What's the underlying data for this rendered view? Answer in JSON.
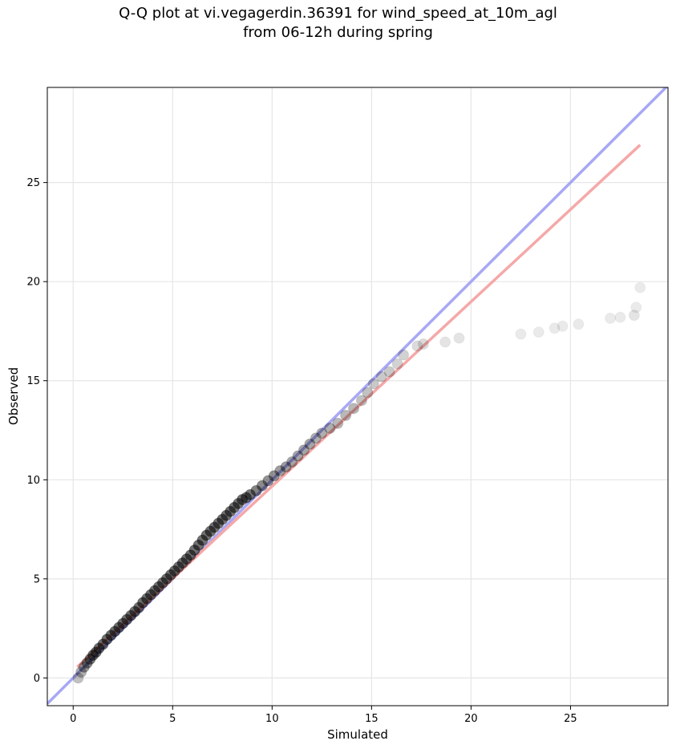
{
  "chart_data": {
    "type": "scatter",
    "title_line1": "Q-Q plot at vi.vegagerdin.36391 for wind_speed_at_10m_agl",
    "title_line2": "from 06-12h during spring",
    "xlabel": "Simulated",
    "ylabel": "Observed",
    "xlim": [
      -1.3,
      29.9
    ],
    "ylim": [
      -1.4,
      29.8
    ],
    "xticks": [
      0,
      5,
      10,
      15,
      20,
      25
    ],
    "yticks": [
      0,
      5,
      10,
      15,
      20,
      25
    ],
    "grid": true,
    "reference_line": {
      "name": "1:1",
      "color": "#a8a8f5",
      "x": [
        -1.3,
        29.9
      ],
      "y": [
        -1.3,
        29.9
      ]
    },
    "fit_line": {
      "color": "#f5a8a8",
      "x": [
        0.2,
        28.5
      ],
      "y": [
        0.55,
        26.9
      ]
    },
    "point_color": "#000000",
    "points": {
      "x": [
        0.25,
        0.4,
        0.55,
        0.7,
        0.85,
        1.0,
        1.15,
        1.3,
        1.5,
        1.7,
        1.9,
        2.1,
        2.3,
        2.5,
        2.7,
        2.9,
        3.1,
        3.3,
        3.5,
        3.7,
        3.9,
        4.1,
        4.3,
        4.5,
        4.7,
        4.9,
        5.1,
        5.3,
        5.5,
        5.7,
        5.9,
        6.1,
        6.3,
        6.5,
        6.7,
        6.9,
        7.1,
        7.3,
        7.5,
        7.7,
        7.9,
        8.1,
        8.3,
        8.5,
        8.7,
        8.9,
        9.2,
        9.5,
        9.8,
        10.1,
        10.4,
        10.7,
        11.0,
        11.3,
        11.6,
        11.9,
        12.2,
        12.5,
        12.9,
        13.3,
        13.7,
        14.1,
        14.5,
        14.8,
        15.1,
        15.5,
        15.9,
        16.3,
        16.6,
        17.3,
        17.6,
        18.7,
        19.4,
        22.5,
        23.4,
        24.2,
        24.6,
        25.4,
        27.0,
        27.5,
        28.2,
        28.3,
        28.5
      ],
      "y": [
        0.0,
        0.3,
        0.55,
        0.75,
        0.95,
        1.15,
        1.3,
        1.5,
        1.7,
        1.95,
        2.15,
        2.35,
        2.55,
        2.75,
        2.95,
        3.15,
        3.35,
        3.55,
        3.8,
        4.0,
        4.2,
        4.4,
        4.6,
        4.8,
        5.0,
        5.2,
        5.4,
        5.6,
        5.8,
        6.0,
        6.2,
        6.45,
        6.7,
        6.95,
        7.2,
        7.4,
        7.6,
        7.8,
        8.0,
        8.2,
        8.4,
        8.6,
        8.8,
        9.0,
        9.1,
        9.25,
        9.45,
        9.7,
        9.95,
        10.2,
        10.45,
        10.65,
        10.9,
        11.2,
        11.5,
        11.8,
        12.1,
        12.35,
        12.6,
        12.85,
        13.25,
        13.6,
        14.0,
        14.4,
        14.85,
        15.2,
        15.45,
        15.85,
        16.3,
        16.75,
        16.85,
        16.95,
        17.15,
        17.35,
        17.45,
        17.65,
        17.75,
        17.85,
        18.15,
        18.2,
        18.3,
        18.7,
        19.7
      ],
      "opacity": [
        0.35,
        0.45,
        0.55,
        0.65,
        0.75,
        0.8,
        0.8,
        0.8,
        0.8,
        0.8,
        0.8,
        0.8,
        0.8,
        0.8,
        0.8,
        0.8,
        0.8,
        0.8,
        0.8,
        0.8,
        0.8,
        0.8,
        0.8,
        0.8,
        0.8,
        0.8,
        0.8,
        0.8,
        0.8,
        0.8,
        0.8,
        0.8,
        0.8,
        0.8,
        0.8,
        0.8,
        0.8,
        0.8,
        0.8,
        0.8,
        0.8,
        0.8,
        0.8,
        0.8,
        0.8,
        0.75,
        0.7,
        0.65,
        0.6,
        0.6,
        0.55,
        0.55,
        0.5,
        0.5,
        0.5,
        0.5,
        0.45,
        0.45,
        0.45,
        0.4,
        0.4,
        0.4,
        0.35,
        0.35,
        0.3,
        0.3,
        0.3,
        0.25,
        0.25,
        0.2,
        0.2,
        0.15,
        0.15,
        0.12,
        0.12,
        0.12,
        0.12,
        0.12,
        0.12,
        0.12,
        0.15,
        0.12,
        0.12
      ]
    }
  }
}
